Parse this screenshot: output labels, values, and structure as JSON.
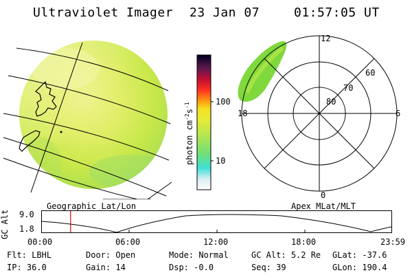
{
  "header": {
    "instrument": "Ultraviolet Imager",
    "date": "23 Jan 07",
    "time": "01:57:05 UT"
  },
  "colorbar": {
    "unit_label": "photon cm",
    "unit_exp1": "-2",
    "unit_mid": "s",
    "unit_exp2": "-1",
    "tick_high": "100",
    "tick_low": "10"
  },
  "panels": {
    "left_caption": "Geographic Lat/Lon",
    "right_caption": "Apex MLat/MLT"
  },
  "polar": {
    "mlt_top": "12",
    "mlt_left": "18",
    "mlt_right": "6",
    "mlt_bottom": "0",
    "lat_60": "60",
    "lat_70": "70",
    "lat_80": "80"
  },
  "altitude_plot": {
    "ylabel": "GC Alt",
    "y_high": "9.0",
    "y_low": "1.8",
    "time_ticks": [
      "00:00",
      "06:00",
      "12:00",
      "18:00",
      "23:59"
    ],
    "current_time_fraction": 0.082
  },
  "info": {
    "filter_label": "Flt:",
    "filter_value": "LBHL",
    "door_label": "Door:",
    "door_value": "Open",
    "mode_label": "Mode:",
    "mode_value": "Normal",
    "gcalt_label": "GC Alt:",
    "gcalt_value": "5.2 Re",
    "glat_label": "GLat:",
    "glat_value": "-37.6",
    "ip_label": "IP:",
    "ip_value": "36.0",
    "gain_label": "Gain:",
    "gain_value": "14",
    "dsp_label": "Dsp:",
    "dsp_value": "-0.0",
    "seq_label": "Seq:",
    "seq_value": "39",
    "glon_label": "GLon:",
    "glon_value": "190.4"
  },
  "colors": {
    "disk_base": "#c9e84a",
    "disk_bright": "#f2f590",
    "marker": "#dd0000"
  }
}
